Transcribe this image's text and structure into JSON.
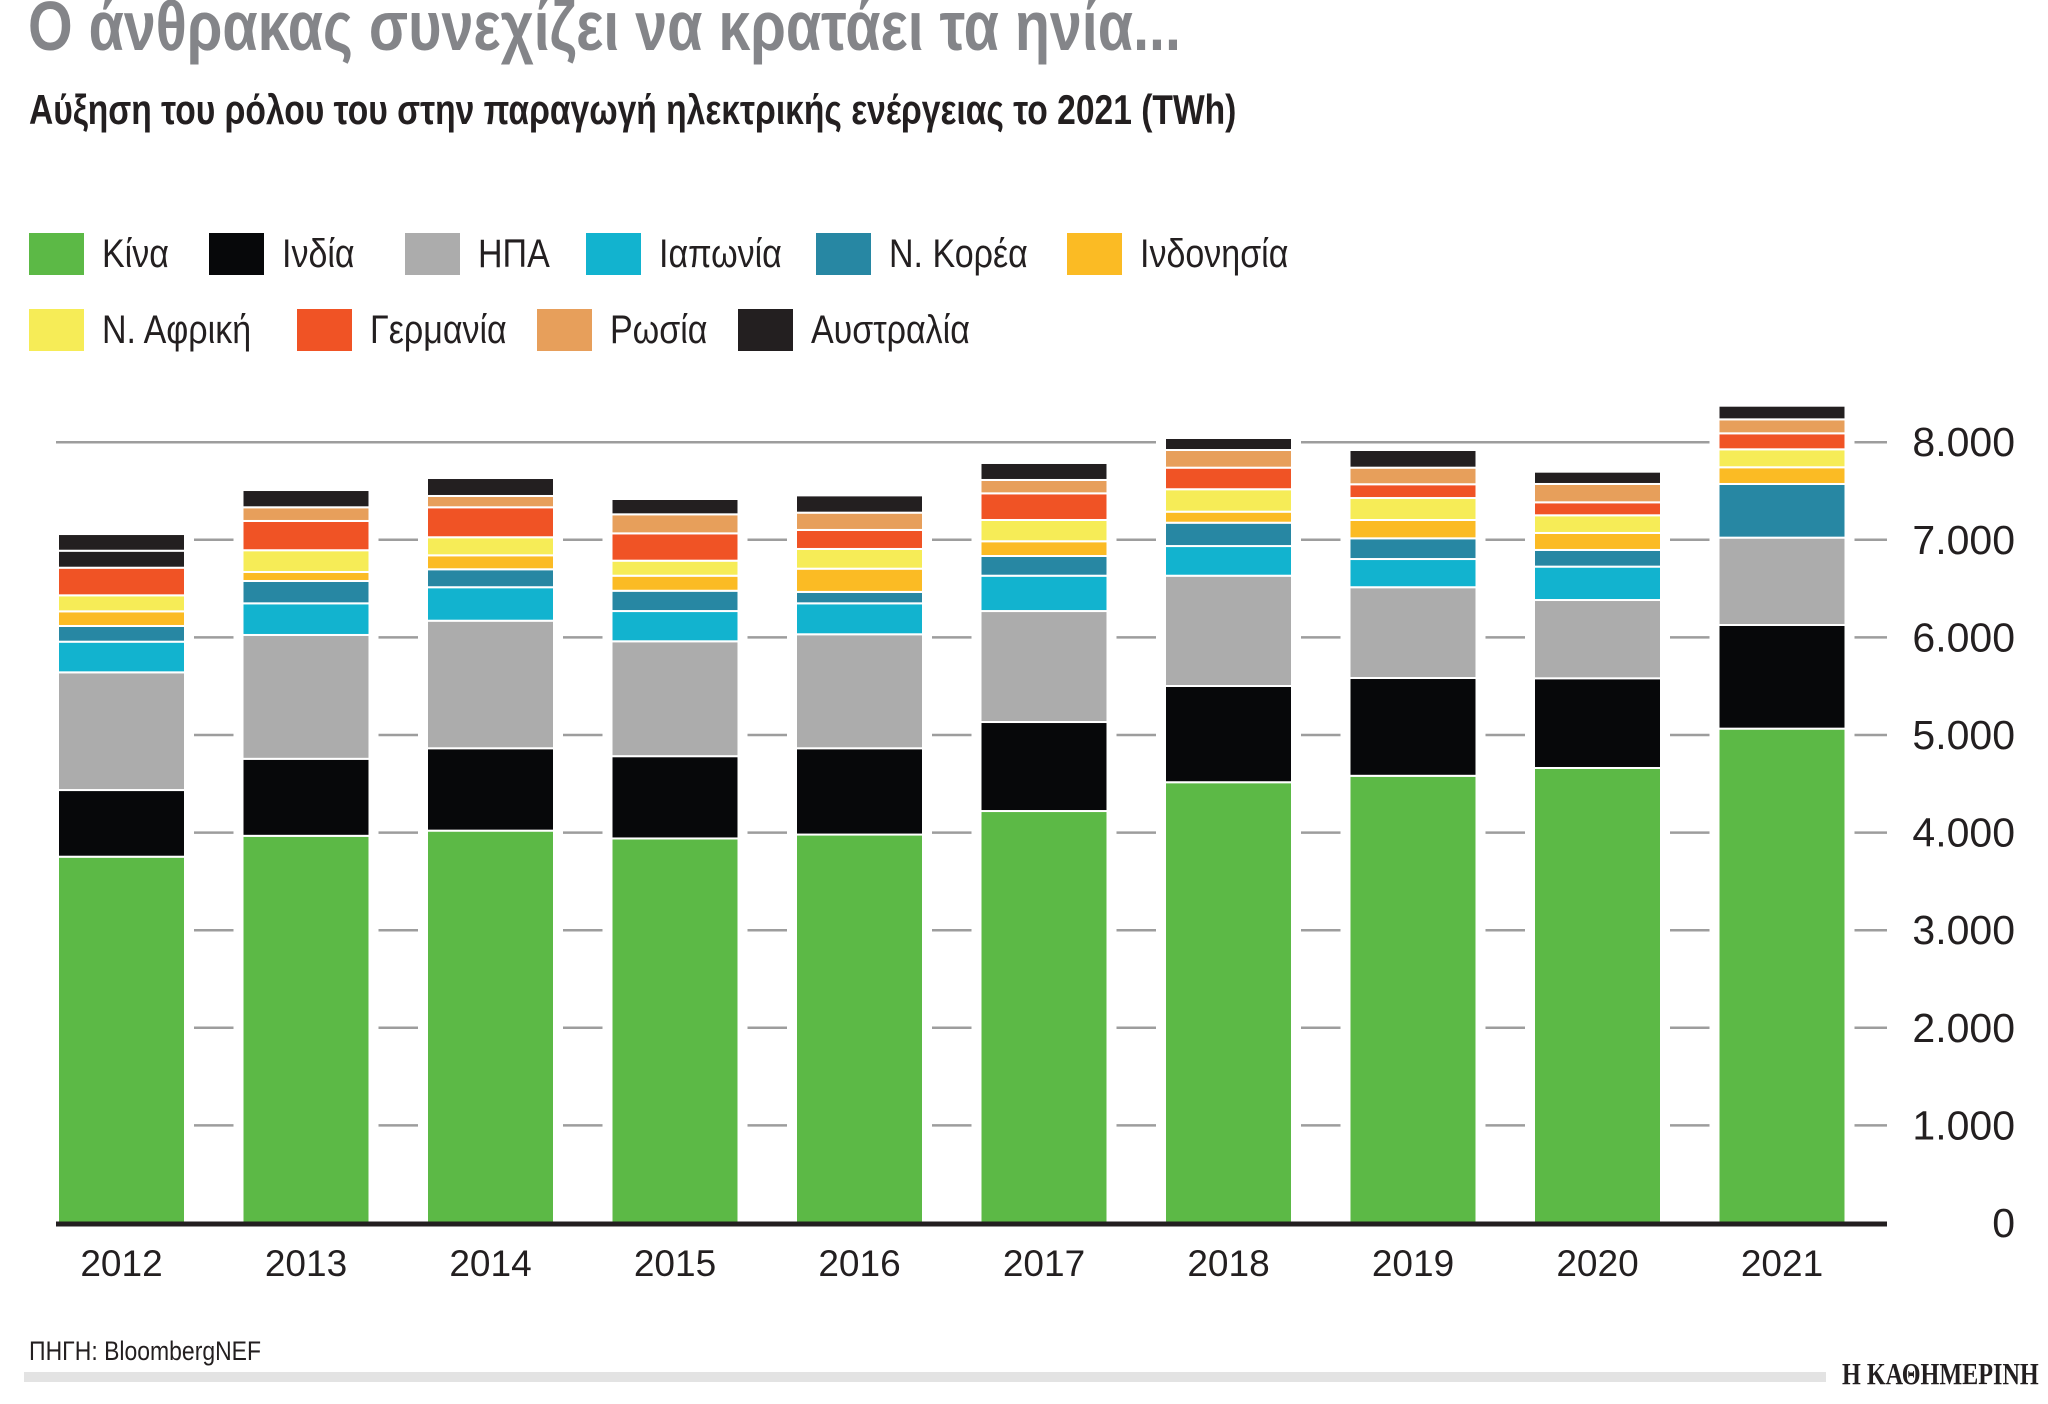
{
  "header": {
    "title": "Ο άνθρακας συνεχίζει να κρατάει τα ηνία...",
    "subtitle": "Αύξηση του ρόλου του στην παραγωγή ηλεκτρικής ενέργειας το 2021 (TWh)"
  },
  "footer": {
    "source": "ΠΗΓΗ: BloombergNEF",
    "logo": "Η ΚΑΘΗΜΕΡΙΝΗ"
  },
  "chart_data": {
    "type": "bar",
    "stacked": true,
    "title": "Αύξηση του ρόλου του στην παραγωγή ηλεκτρικής ενέργειας το 2021 (TWh)",
    "xlabel": "",
    "ylabel": "",
    "ylim": [
      0,
      8000
    ],
    "yticks": [
      0,
      1000,
      2000,
      3000,
      4000,
      5000,
      6000,
      7000,
      8000
    ],
    "ytick_labels": [
      "0",
      "1.000",
      "2.000",
      "3.000",
      "4.000",
      "5.000",
      "6.000",
      "7.000",
      "8.000"
    ],
    "y_axis_side": "right",
    "grid": true,
    "legend_placement": "top",
    "categories": [
      "2012",
      "2013",
      "2014",
      "2015",
      "2016",
      "2017",
      "2018",
      "2019",
      "2020",
      "2021"
    ],
    "series": [
      {
        "name": "Κίνα",
        "color": "#5cb946",
        "values": [
          3753,
          3967,
          4020,
          3940,
          3980,
          4221,
          4516,
          4582,
          4662,
          5065
        ]
      },
      {
        "name": "Ινδία",
        "color": "#07080a",
        "values": [
          683,
          789,
          844,
          843,
          884,
          912,
          986,
          1002,
          919,
          1062
        ]
      },
      {
        "name": "ΗΠΑ",
        "color": "#acacac",
        "values": [
          1206,
          1269,
          1307,
          1177,
          1168,
          1137,
          1130,
          930,
          802,
          895
        ]
      },
      {
        "name": "Ιαπωνία",
        "color": "#12b3cf",
        "values": [
          314,
          324,
          343,
          310,
          317,
          362,
          304,
          289,
          342,
          0
        ]
      },
      {
        "name": "Ν. Κορέα",
        "color": "#2787a3",
        "values": [
          161,
          229,
          184,
          208,
          117,
          202,
          239,
          212,
          171,
          550
        ]
      },
      {
        "name": "Ινδονησία",
        "color": "#fbbb24",
        "values": [
          150,
          92,
          143,
          154,
          238,
          151,
          113,
          188,
          174,
          171
        ]
      },
      {
        "name": "Ν. Αφρική",
        "color": "#f6ec57",
        "values": [
          164,
          223,
          185,
          154,
          202,
          218,
          230,
          225,
          181,
          184
        ]
      },
      {
        "name": "Γερμανία",
        "color": "#f05325",
        "values": [
          283,
          300,
          307,
          280,
          195,
          273,
          221,
          141,
          133,
          164
        ]
      },
      {
        "name": "Ρωσία",
        "color": "#e79f5b",
        "values": [
          174,
          140,
          116,
          195,
          177,
          137,
          181,
          170,
          188,
          143
        ]
      },
      {
        "name": "Αυστραλία",
        "color": "#231f20",
        "values": [
          171,
          177,
          184,
          157,
          177,
          174,
          123,
          181,
          126,
          140
        ]
      }
    ],
    "segment_color_overrides": [
      {
        "category": "2012",
        "series": "Ρωσία",
        "color": "#231f20"
      }
    ]
  }
}
